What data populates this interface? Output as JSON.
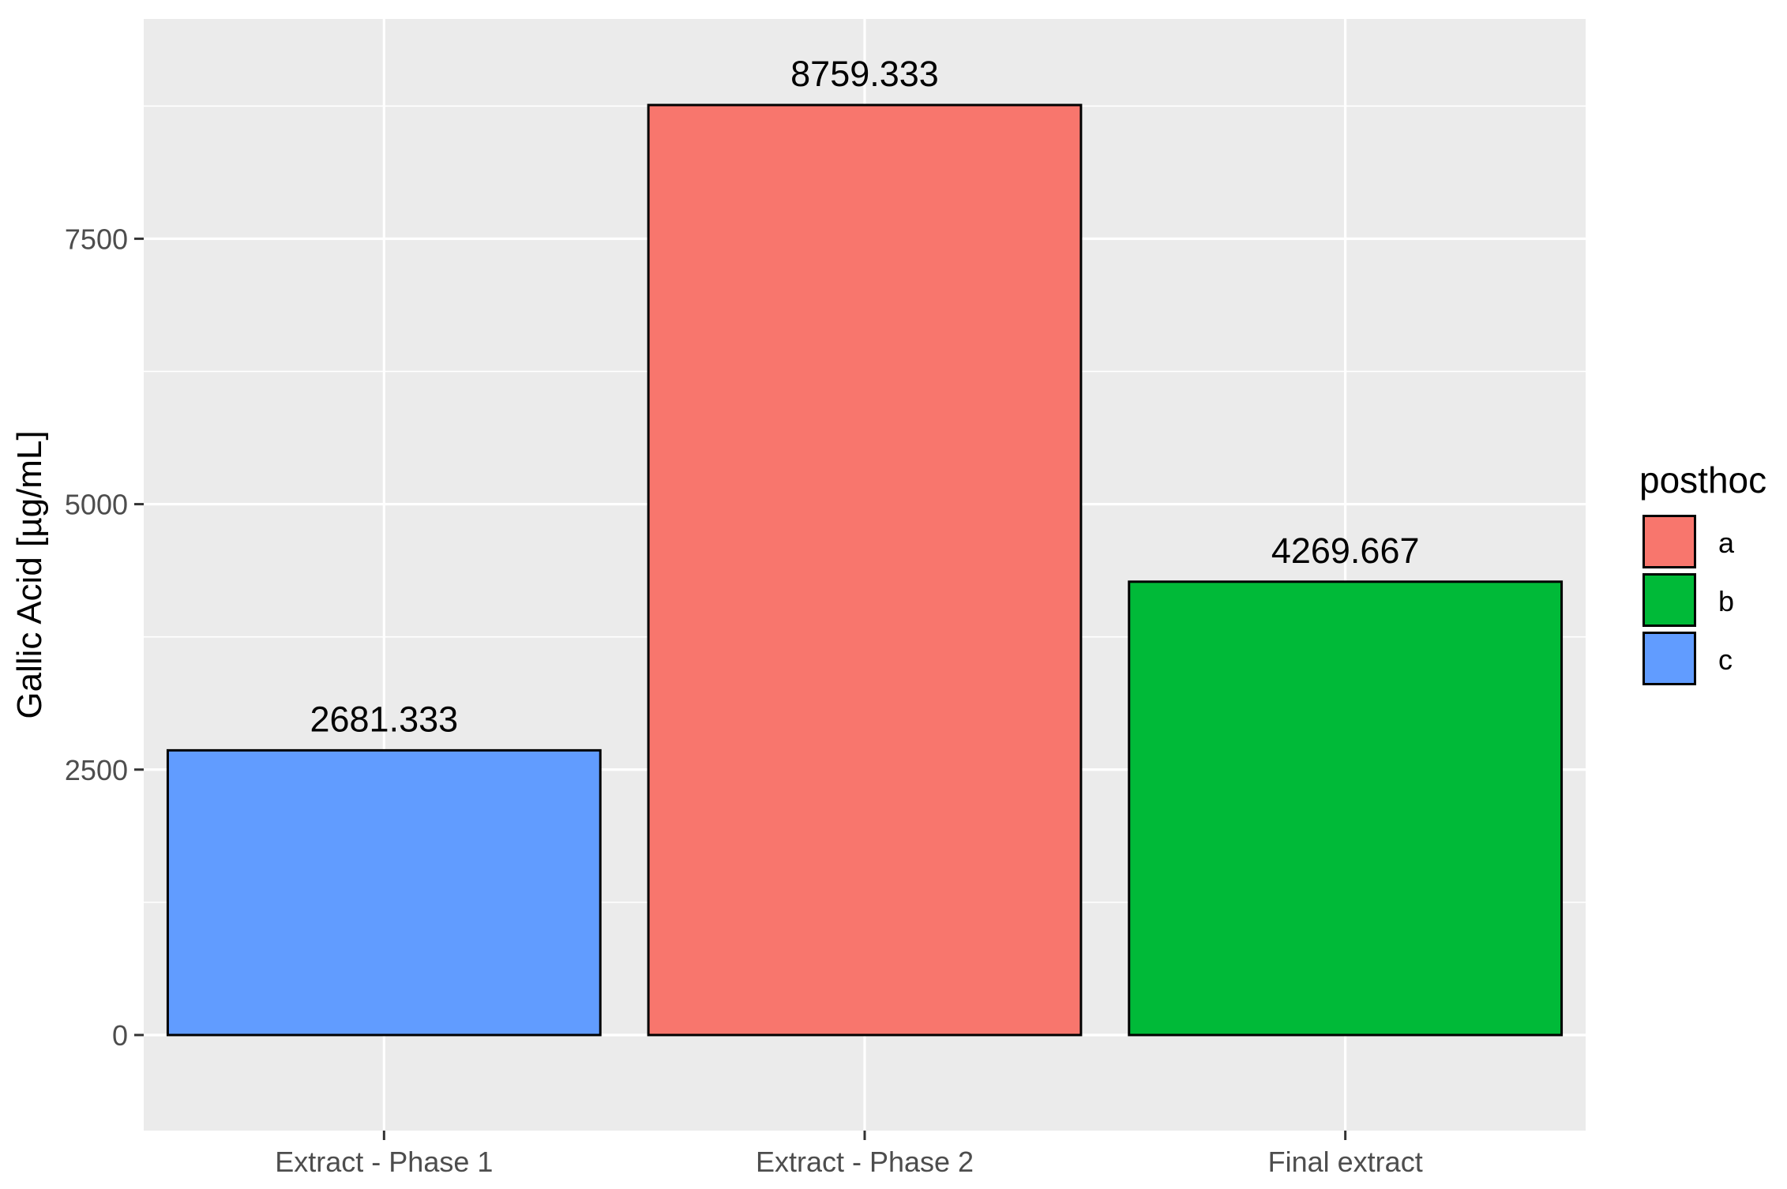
{
  "chart_data": {
    "type": "bar",
    "title": "",
    "xlabel": "",
    "ylabel": "Gallic Acid [µg/mL]",
    "ylim": [
      -900,
      9570
    ],
    "yticks": [
      0,
      2500,
      5000,
      7500
    ],
    "grid": true,
    "categories": [
      "Extract - Phase 1",
      "Extract - Phase 2",
      "Final extract"
    ],
    "values": [
      2681.333,
      8759.333,
      4269.667
    ],
    "data_labels": [
      "2681.333",
      "8759.333",
      "4269.667"
    ],
    "bar_groups": [
      "c",
      "a",
      "b"
    ],
    "legend": {
      "title": "posthoc",
      "placement": "right",
      "entries": [
        {
          "label": "a",
          "color": "#F8766D"
        },
        {
          "label": "b",
          "color": "#00BA38"
        },
        {
          "label": "c",
          "color": "#619CFF"
        }
      ]
    },
    "colors": {
      "panel_background": "#EBEBEB",
      "grid_line": "#FFFFFF",
      "bar_outline": "#000000",
      "axis_text": "#4D4D4D",
      "label_text": "#000000"
    }
  }
}
